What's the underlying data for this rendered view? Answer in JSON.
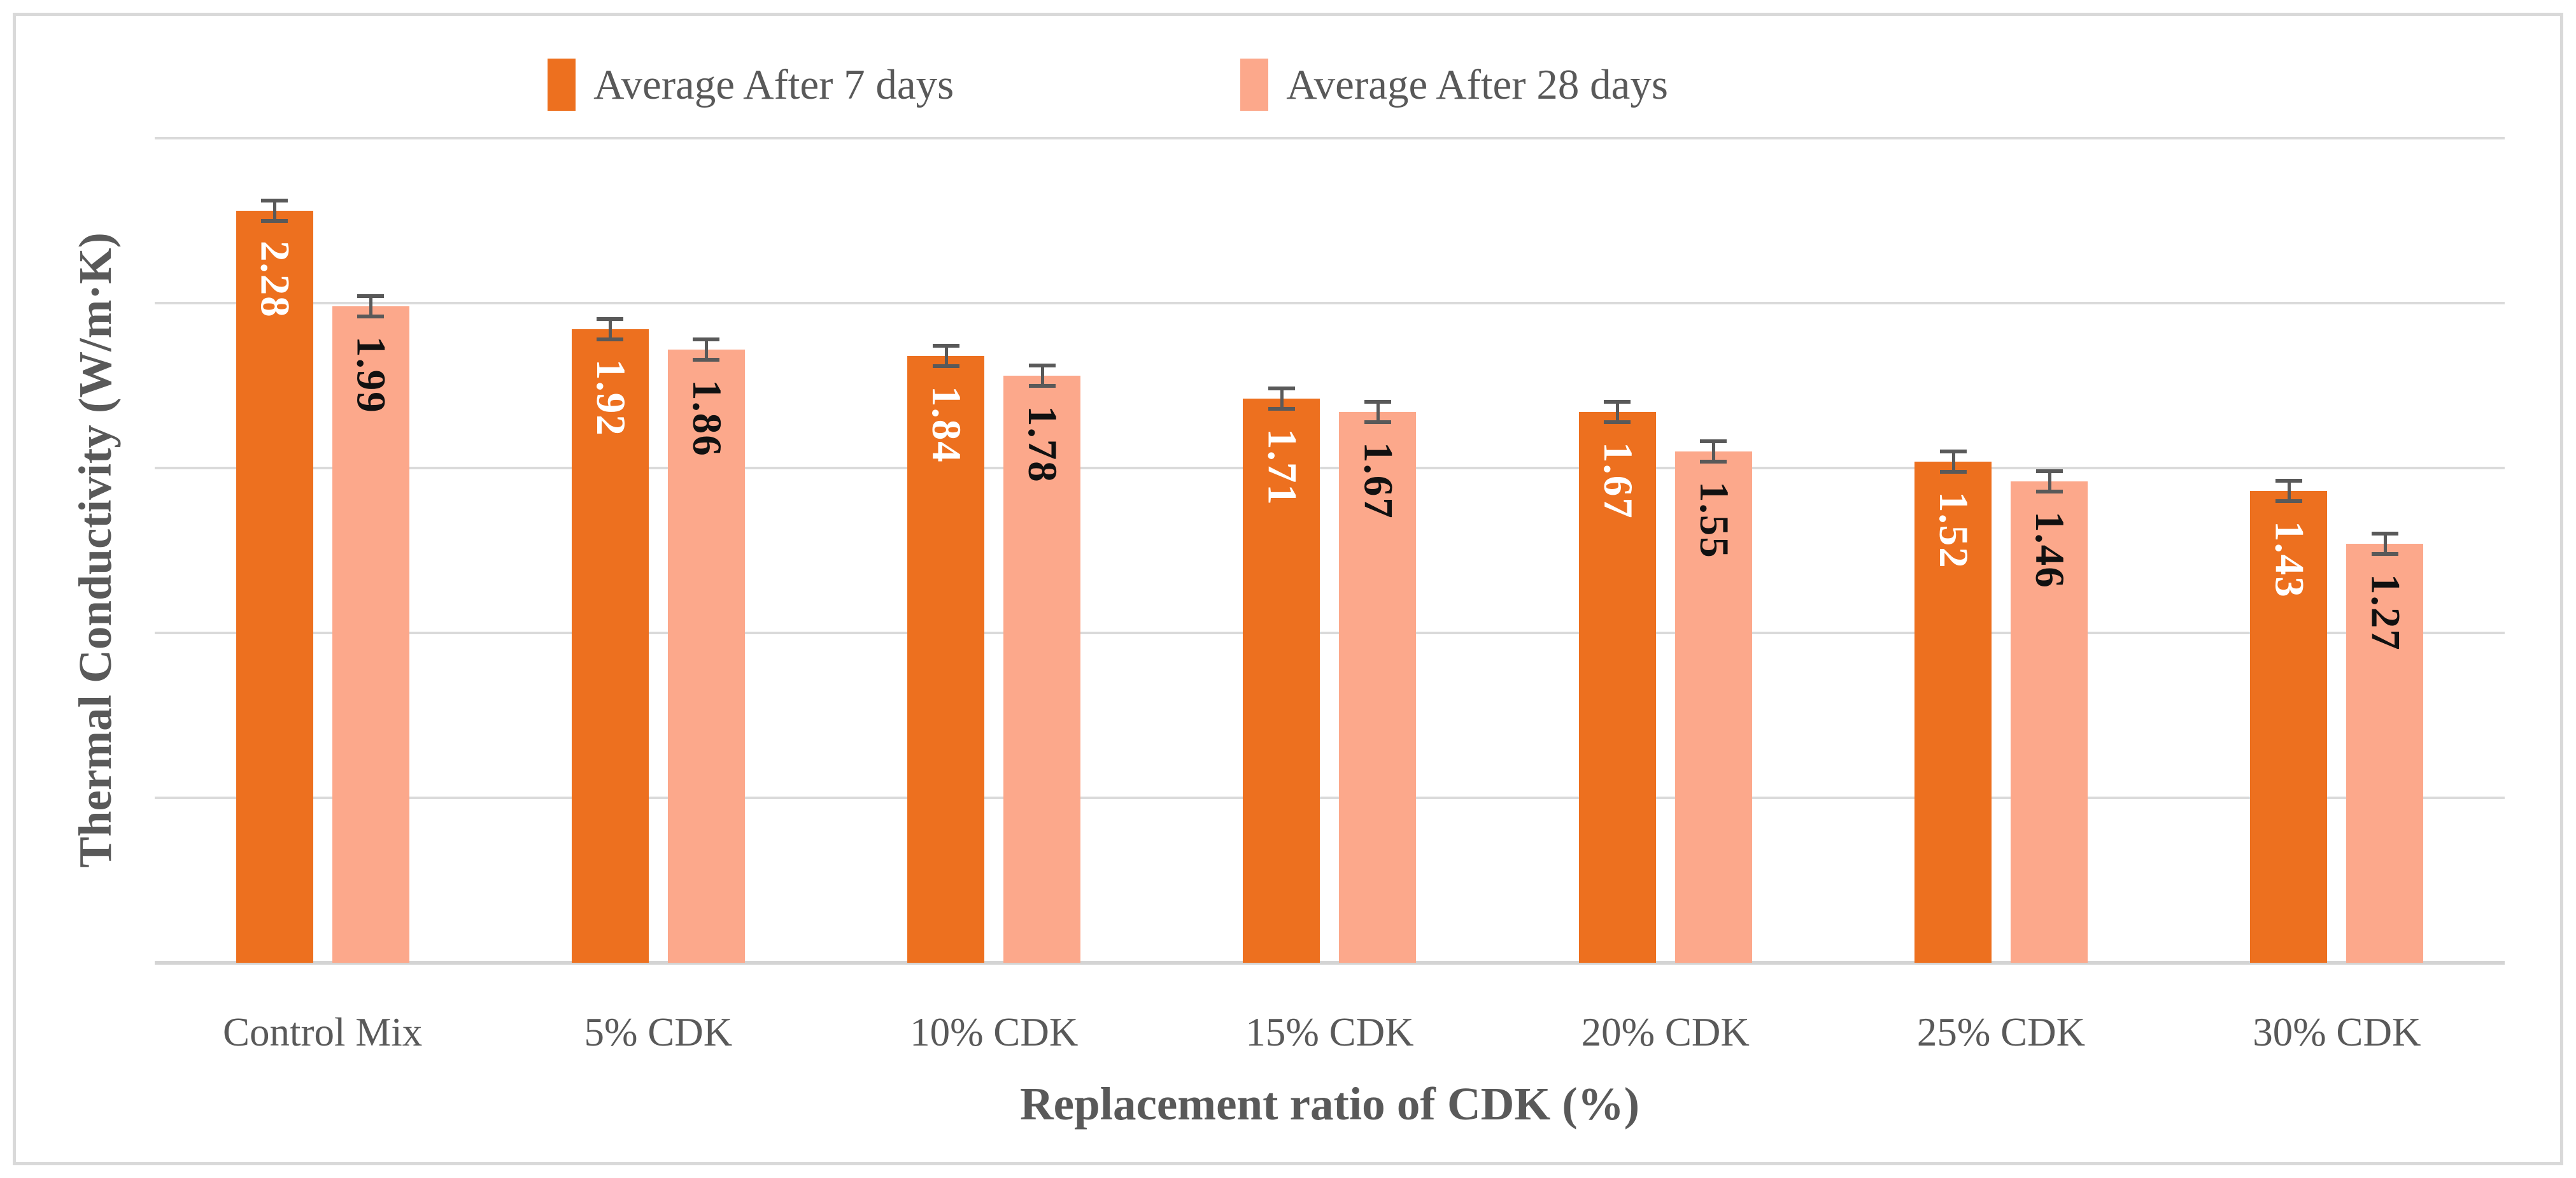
{
  "figure": {
    "background": "#FFFFFF",
    "border_color": "#D9D9D9"
  },
  "legend": {
    "position": "top",
    "items": [
      {
        "label": "Average After 7 days",
        "color": "#ED701F"
      },
      {
        "label": "Average After 28 days",
        "color": "#FCA88B"
      }
    ]
  },
  "chart_data": {
    "type": "bar",
    "title": "",
    "xlabel": "Replacement ratio of CDK (%)",
    "ylabel": "Thermal Conductivity (W/m·K)",
    "categories": [
      "Control Mix",
      "5% CDK",
      "10% CDK",
      "15% CDK",
      "20% CDK",
      "25% CDK",
      "30% CDK"
    ],
    "series": [
      {
        "name": "Average After 7 days",
        "color": "#ED701F",
        "label_color": "#FFFFFF",
        "values": [
          2.28,
          1.92,
          1.84,
          1.71,
          1.67,
          1.52,
          1.43
        ],
        "error_bar_approx": 0.03
      },
      {
        "name": "Average After 28 days",
        "color": "#FCA88B",
        "label_color": "#111111",
        "values": [
          1.99,
          1.86,
          1.78,
          1.67,
          1.55,
          1.46,
          1.27
        ],
        "error_bar_approx": 0.03
      }
    ],
    "ylim": [
      0,
      2.5
    ],
    "gridline_step": 0.5,
    "grid": true,
    "y_tick_labels_visible": false,
    "error_bars": true,
    "data_label_rotation": "rotated-90-clockwise",
    "gridline_color": "#DADADA",
    "axis_text_color": "#595959"
  }
}
